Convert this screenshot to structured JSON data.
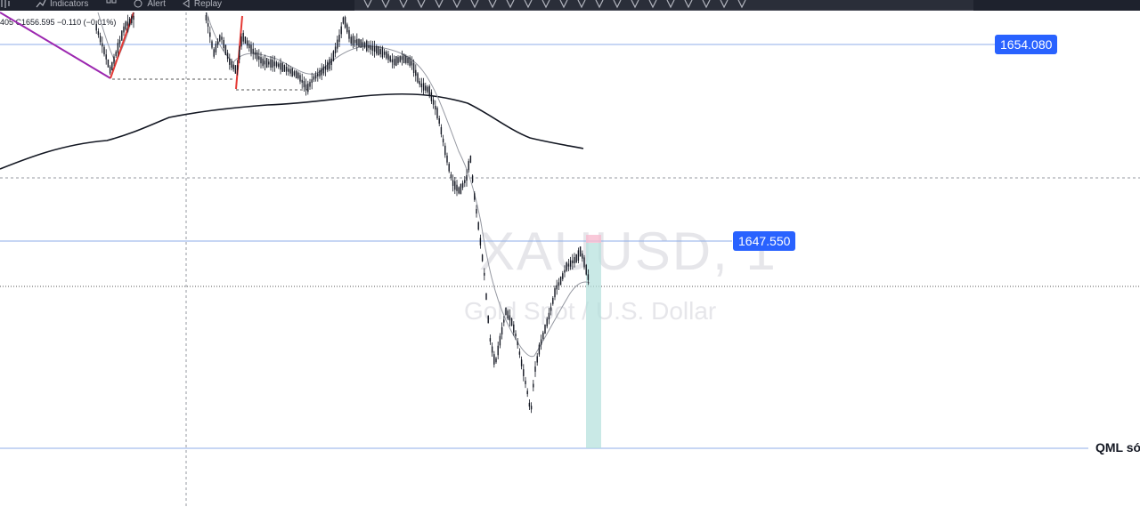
{
  "top_toolbar": {
    "indicators_label": "Indicators",
    "alert_label": "Alert",
    "replay_label": "Replay"
  },
  "legend": {
    "ohlc_text": "405 C1656.595 −0.110 (−0.01%)"
  },
  "watermark": {
    "symbol": "XAUUSD, 1",
    "description": "Gold Spot / U.S. Dollar"
  },
  "price_lines": {
    "upper_label": "1654.080",
    "middle_label": "1647.550",
    "qml_text": "QML sớ"
  },
  "colors": {
    "price_label_bg": "#2962ff",
    "horizontal_line": "#8faee8",
    "candles": "#131722",
    "moving_average_slow": "#131722",
    "moving_average_fast": "#9598a1",
    "trendline_purple": "#9c27b0",
    "trendline_red": "#e53935",
    "target_zone": "#b2dfdb",
    "stop_zone": "#f8bbd0"
  },
  "drawing_toolbar_icons": [
    "cursor-icon",
    "text-icon",
    "trend-line-icon",
    "ray-icon",
    "arrow-icon",
    "pitchfork-icon",
    "brush-icon",
    "callout-icon",
    "rectangle-icon",
    "ruler-icon",
    "path-icon",
    "fib-icon",
    "pen-icon",
    "pattern-icon",
    "long-position-icon",
    "measure-icon",
    "zoom-icon",
    "magnet-icon",
    "lock-icon",
    "eye-icon",
    "settings-icon",
    "trash-icon"
  ]
}
